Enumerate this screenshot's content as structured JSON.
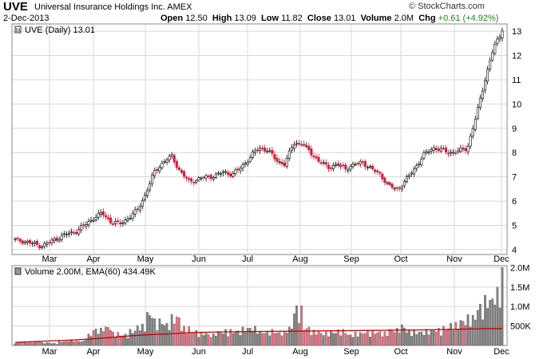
{
  "header": {
    "ticker": "UVE",
    "company": "Universal Insurance Holdings Inc. AMEX",
    "date": "2-Dec-2013",
    "open_label": "Open",
    "open": "12.50",
    "high_label": "High",
    "high": "13.09",
    "low_label": "Low",
    "low": "11.82",
    "close_label": "Close",
    "close": "13.01",
    "volume_label": "Volume",
    "volume": "2.0M",
    "chg_label": "Chg",
    "chg": "+0.61 (+4.92%)",
    "brand": "© StockCharts.com"
  },
  "colors": {
    "up": "#000000",
    "down": "#d11a3a",
    "vol_up": "#808080",
    "vol_down": "#e07080",
    "ema": "#cc0000",
    "grid": "#d8d8d8"
  },
  "chart_data": [
    {
      "type": "candlestick",
      "legend": "UVE (Daily) 13.01",
      "x_labels": [
        "Mar",
        "Apr",
        "May",
        "Jun",
        "Jul",
        "Aug",
        "Sep",
        "Oct",
        "Nov",
        "Dec"
      ],
      "y_ticks": [
        4,
        5,
        6,
        7,
        8,
        9,
        10,
        11,
        12,
        13
      ],
      "ylim": [
        3.8,
        13.3
      ],
      "grid": true,
      "close_path": [
        {
          "m": "Feb",
          "v": 4.4
        },
        {
          "m": "Feb",
          "v": 4.35
        },
        {
          "m": "Mar",
          "v": 4.25
        },
        {
          "m": "Mar",
          "v": 4.15
        },
        {
          "m": "Mar",
          "v": 4.3
        },
        {
          "m": "Mar",
          "v": 4.5
        },
        {
          "m": "Mar",
          "v": 4.65
        },
        {
          "m": "Apr",
          "v": 4.75
        },
        {
          "m": "Apr",
          "v": 5.0
        },
        {
          "m": "Apr",
          "v": 5.3
        },
        {
          "m": "Apr",
          "v": 5.5
        },
        {
          "m": "Apr",
          "v": 5.15
        },
        {
          "m": "Apr",
          "v": 5.05
        },
        {
          "m": "Apr",
          "v": 5.3
        },
        {
          "m": "May",
          "v": 5.6
        },
        {
          "m": "May",
          "v": 6.3
        },
        {
          "m": "May",
          "v": 7.2
        },
        {
          "m": "May",
          "v": 7.6
        },
        {
          "m": "May",
          "v": 7.85
        },
        {
          "m": "May",
          "v": 7.2
        },
        {
          "m": "Jun",
          "v": 6.8
        },
        {
          "m": "Jun",
          "v": 6.9
        },
        {
          "m": "Jun",
          "v": 7.0
        },
        {
          "m": "Jun",
          "v": 7.05
        },
        {
          "m": "Jun",
          "v": 7.2
        },
        {
          "m": "Jul",
          "v": 7.1
        },
        {
          "m": "Jul",
          "v": 7.4
        },
        {
          "m": "Jul",
          "v": 7.8
        },
        {
          "m": "Jul",
          "v": 8.2
        },
        {
          "m": "Jul",
          "v": 8.1
        },
        {
          "m": "Jul",
          "v": 7.7
        },
        {
          "m": "Aug",
          "v": 7.5
        },
        {
          "m": "Aug",
          "v": 8.4
        },
        {
          "m": "Aug",
          "v": 8.35
        },
        {
          "m": "Aug",
          "v": 8.0
        },
        {
          "m": "Aug",
          "v": 7.6
        },
        {
          "m": "Aug",
          "v": 7.4
        },
        {
          "m": "Sep",
          "v": 7.5
        },
        {
          "m": "Sep",
          "v": 7.35
        },
        {
          "m": "Sep",
          "v": 7.5
        },
        {
          "m": "Sep",
          "v": 7.6
        },
        {
          "m": "Sep",
          "v": 7.3
        },
        {
          "m": "Oct",
          "v": 7.1
        },
        {
          "m": "Oct",
          "v": 6.6
        },
        {
          "m": "Oct",
          "v": 6.5
        },
        {
          "m": "Oct",
          "v": 6.9
        },
        {
          "m": "Oct",
          "v": 7.4
        },
        {
          "m": "Nov",
          "v": 7.9
        },
        {
          "m": "Nov",
          "v": 8.2
        },
        {
          "m": "Nov",
          "v": 8.1
        },
        {
          "m": "Nov",
          "v": 8.0
        },
        {
          "m": "Nov",
          "v": 8.05
        },
        {
          "m": "Nov",
          "v": 8.2
        },
        {
          "m": "Nov",
          "v": 9.5
        },
        {
          "m": "Dec",
          "v": 11.0
        },
        {
          "m": "Dec",
          "v": 12.3
        },
        {
          "m": "Dec",
          "v": 13.01
        }
      ]
    },
    {
      "type": "bar",
      "legend": "Volume 2.00M, EMA(60) 434.49K",
      "y_ticks": [
        {
          "label": "500K",
          "v": 500000
        },
        {
          "label": "1.0M",
          "v": 1000000
        },
        {
          "label": "1.5M",
          "v": 1500000
        },
        {
          "label": "2.0M",
          "v": 2000000
        }
      ],
      "ylim": [
        0,
        2050000
      ],
      "series": [
        {
          "name": "Volume",
          "values": [
            90000,
            100000,
            120000,
            80000,
            60000,
            110000,
            150000,
            120000,
            300000,
            450000,
            520000,
            350000,
            300000,
            420000,
            550000,
            900000,
            700000,
            600000,
            800000,
            500000,
            400000,
            350000,
            300000,
            380000,
            420000,
            400000,
            480000,
            500000,
            380000,
            420000,
            360000,
            500000,
            1040000,
            500000,
            400000,
            350000,
            380000,
            420000,
            300000,
            350000,
            400000,
            380000,
            350000,
            450000,
            550000,
            400000,
            380000,
            420000,
            450000,
            500000,
            600000,
            700000,
            800000,
            1100000,
            1300000,
            1500000,
            2000000
          ]
        },
        {
          "name": "EMA(60)",
          "values": [
            80000,
            100000,
            120000,
            140000,
            170000,
            210000,
            250000,
            280000,
            300000,
            330000,
            340000,
            350000,
            355000,
            360000,
            365000,
            370000,
            375000,
            380000,
            385000,
            390000,
            395000,
            400000,
            410000,
            420000,
            430000,
            434490
          ]
        }
      ]
    }
  ]
}
